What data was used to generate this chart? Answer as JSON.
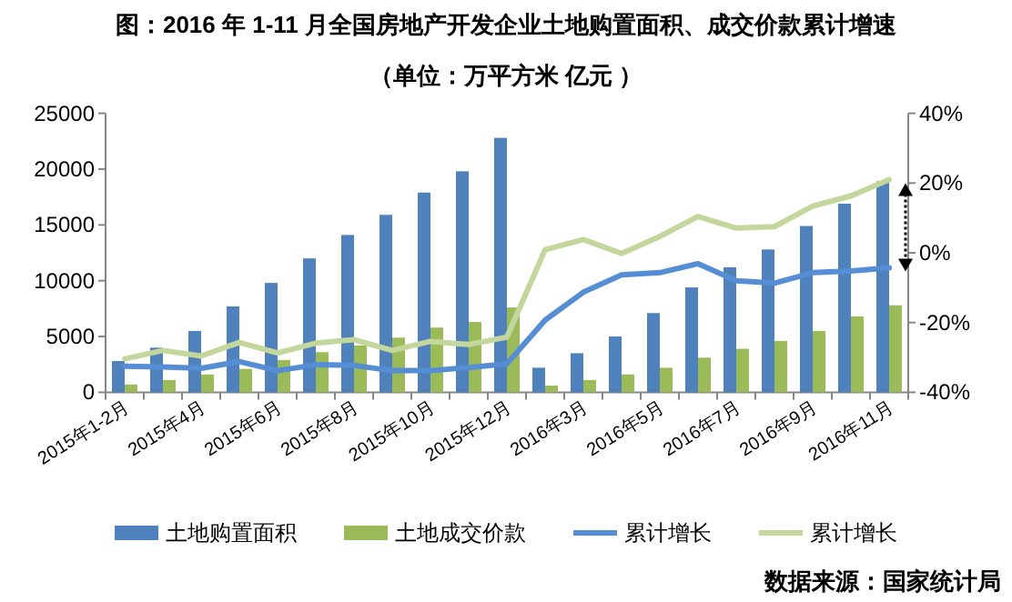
{
  "chart_data": {
    "type": "bar",
    "title": "图：2016 年 1-11 月全国房地产开发企业土地购置面积、成交价款累计增速",
    "subtitle": "（单位：万平方米 亿元 ）",
    "annotations": [
      "数据来源：国家统计局"
    ],
    "categories": [
      "2015年1-2月",
      null,
      "2015年4月",
      null,
      "2015年6月",
      null,
      "2015年8月",
      null,
      "2015年10月",
      null,
      "2015年12月",
      null,
      "2016年3月",
      null,
      "2016年5月",
      null,
      "2016年7月",
      null,
      "2016年9月",
      null,
      "2016年11月"
    ],
    "ylim": [
      0,
      25000
    ],
    "yticks": [
      0,
      5000,
      10000,
      15000,
      20000,
      25000
    ],
    "y2lim": [
      -40,
      40
    ],
    "y2ticks": [
      {
        "value": -40,
        "label": "-40%"
      },
      {
        "value": -20,
        "label": "-20%"
      },
      {
        "value": 0,
        "label": "0%"
      },
      {
        "value": 20,
        "label": "20%"
      },
      {
        "value": 40,
        "label": "40%"
      }
    ],
    "legend": "bottom",
    "series": [
      {
        "name": "土地购置面积",
        "color": "#4f81bd",
        "values": [
          2800,
          4000,
          5500,
          7700,
          9800,
          12000,
          14100,
          15900,
          17900,
          19800,
          22800,
          2200,
          3500,
          5000,
          7100,
          9400,
          11200,
          12800,
          14900,
          16900,
          18900
        ]
      },
      {
        "name": "土地成交价款",
        "color": "#9bbb59",
        "values": [
          700,
          1100,
          1600,
          2100,
          2900,
          3600,
          4200,
          4900,
          5800,
          6300,
          7600,
          600,
          1100,
          1600,
          2200,
          3100,
          3900,
          4600,
          5500,
          6800,
          7800
        ]
      },
      {
        "name": "累计增长",
        "type": "line",
        "axis": "y2",
        "color": "#558ed5",
        "values": [
          -32.5,
          -32.7,
          -33.1,
          -31.2,
          -33.8,
          -32.1,
          -32.3,
          -33.8,
          -33.8,
          -32.9,
          -31.8,
          -19.3,
          -11.3,
          -6.3,
          -5.7,
          -3.1,
          -8,
          -8.7,
          -5.7,
          -5.2,
          -4.3
        ]
      },
      {
        "name": "累计增长",
        "type": "line",
        "axis": "y2",
        "color": "#c3d69b",
        "values": [
          -30.4,
          -28,
          -29.6,
          -25.7,
          -28.7,
          -25.9,
          -24.9,
          -28,
          -25.4,
          -26.3,
          -24.2,
          0.9,
          3.8,
          -0.2,
          4.7,
          10.4,
          7.1,
          7.5,
          13.4,
          16.3,
          21
        ]
      }
    ]
  }
}
